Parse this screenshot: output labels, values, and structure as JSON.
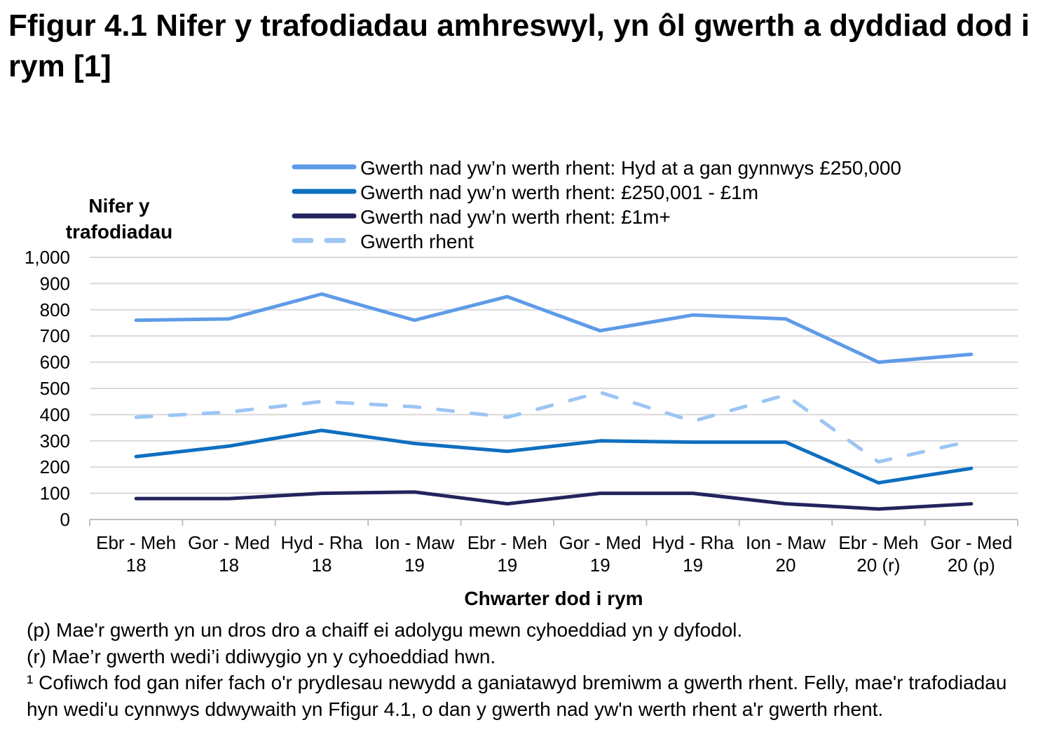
{
  "title": "Ffigur 4.1  Nifer y trafodiadau amhreswyl, yn ôl gwerth a dyddiad dod i rym [1]",
  "chart_data": {
    "type": "line",
    "title": "Ffigur 4.1  Nifer y trafodiadau amhreswyl, yn ôl gwerth a dyddiad dod i rym [1]",
    "xlabel": "Chwarter dod i rym",
    "ylabel": "Nifer y trafodiadau",
    "ylabel_lines": [
      "Nifer y",
      "trafodiadau"
    ],
    "ylim": [
      0,
      1000
    ],
    "yticks": [
      "0",
      "100",
      "200",
      "300",
      "400",
      "500",
      "600",
      "700",
      "800",
      "900",
      "1,000"
    ],
    "grid": true,
    "legend_position": "top",
    "categories": [
      [
        "Ebr - Meh",
        "18"
      ],
      [
        "Gor - Med",
        "18"
      ],
      [
        "Hyd - Rha",
        "18"
      ],
      [
        "Ion - Maw",
        "19"
      ],
      [
        "Ebr - Meh",
        "19"
      ],
      [
        "Gor - Med",
        "19"
      ],
      [
        "Hyd - Rha",
        "19"
      ],
      [
        "Ion - Maw",
        "20"
      ],
      [
        "Ebr - Meh",
        "20 (r)"
      ],
      [
        "Gor - Med",
        "20 (p)"
      ]
    ],
    "series": [
      {
        "name": "Gwerth nad yw’n werth rhent: Hyd at a gan gynnwys £250,000",
        "color": "#5e9be8",
        "dashed": false,
        "values": [
          760,
          765,
          860,
          760,
          850,
          720,
          780,
          765,
          600,
          630
        ]
      },
      {
        "name": "Gwerth nad yw’n werth rhent: £250,001 - £1m",
        "color": "#0f6fbf",
        "dashed": false,
        "values": [
          240,
          280,
          340,
          290,
          260,
          300,
          295,
          295,
          140,
          195
        ]
      },
      {
        "name": "Gwerth nad yw’n werth rhent: £1m+",
        "color": "#23245e",
        "dashed": false,
        "values": [
          80,
          80,
          100,
          105,
          60,
          100,
          100,
          60,
          40,
          60
        ]
      },
      {
        "name": "Gwerth rhent",
        "color": "#9cc5f3",
        "dashed": true,
        "values": [
          390,
          410,
          450,
          430,
          390,
          485,
          375,
          475,
          220,
          300
        ]
      }
    ]
  },
  "notes": [
    "(p) Mae'r gwerth yn un dros dro a chaiff ei adolygu mewn cyhoeddiad yn y dyfodol.",
    "(r) Mae’r gwerth wedi’i ddiwygio yn y cyhoeddiad hwn.",
    "¹ Cofiwch fod gan nifer fach o'r prydlesau newydd a ganiatawyd bremiwm a gwerth rhent. Felly, mae'r trafodiadau hyn wedi'u cynnwys ddwywaith yn Ffigur 4.1, o dan y gwerth nad yw'n werth rhent a'r gwerth rhent."
  ]
}
